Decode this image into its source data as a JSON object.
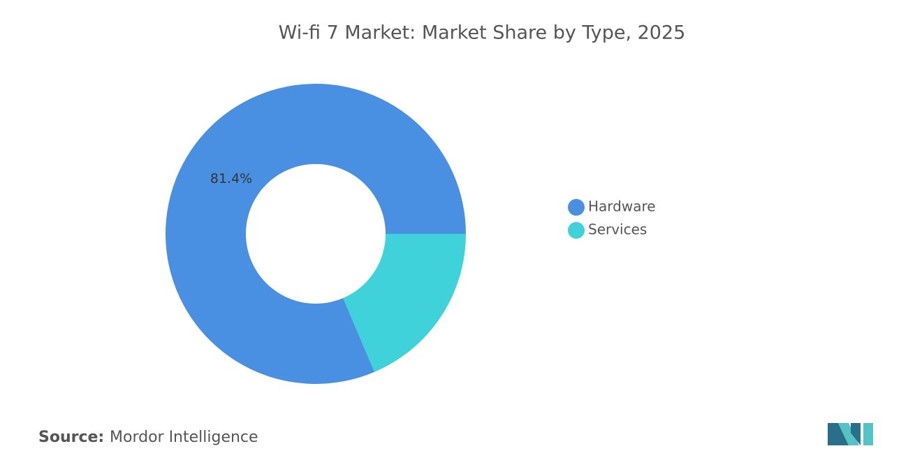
{
  "chart_data": {
    "type": "donut",
    "title": "Wi-fi 7 Market: Market Share by Type, 2025",
    "categories": [
      "Hardware",
      "Services"
    ],
    "values": [
      81.4,
      18.6
    ],
    "value_labels": [
      "81.4%",
      null
    ],
    "colors": [
      "#4a90e2",
      "#40d2da"
    ],
    "legend": "right"
  },
  "source": {
    "label": "Source:",
    "text": "Mordor Intelligence"
  }
}
